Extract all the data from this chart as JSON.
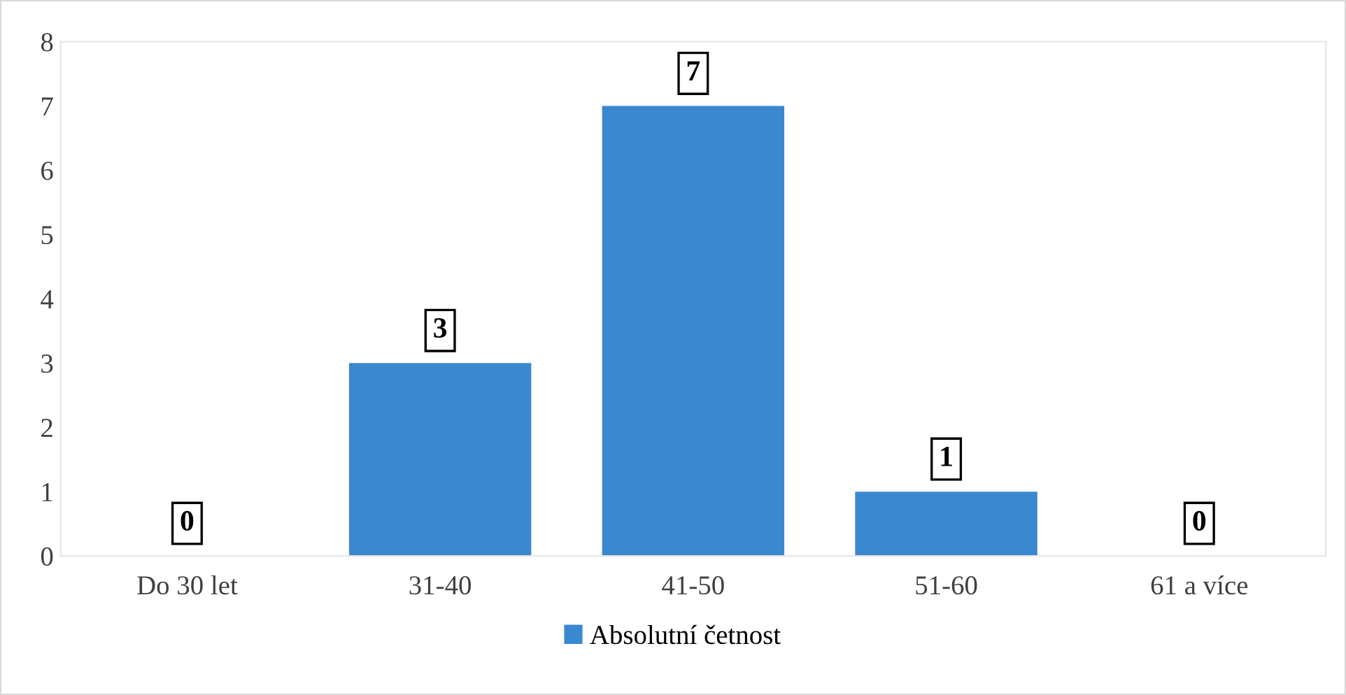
{
  "chart_data": {
    "type": "bar",
    "categories": [
      "Do 30 let",
      "31-40",
      "41-50",
      "51-60",
      "61 a více"
    ],
    "series": [
      {
        "name": "Absolutní četnost",
        "color": "#3a88d0",
        "values": [
          0,
          3,
          7,
          1,
          0
        ]
      }
    ],
    "ylim": [
      0,
      8
    ],
    "yticks": [
      0,
      1,
      2,
      3,
      4,
      5,
      6,
      7,
      8
    ],
    "data_labels": true,
    "legend": "bottom",
    "grid": false
  }
}
